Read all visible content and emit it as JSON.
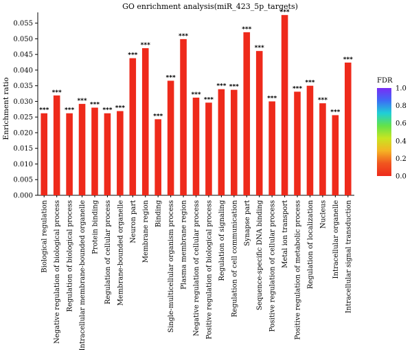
{
  "chart_data": {
    "type": "bar",
    "title": "GO enrichment analysis(miR_423_5p_targets)",
    "xlabel": "",
    "ylabel": "Enrichment ratio",
    "ylim": [
      0,
      0.058
    ],
    "yticks": [
      "0.000",
      "0.005",
      "0.010",
      "0.015",
      "0.020",
      "0.025",
      "0.030",
      "0.035",
      "0.040",
      "0.045",
      "0.050",
      "0.055"
    ],
    "bar_color": "#ee2a1b",
    "categories": [
      "Biological regulation",
      "Negative regulation of biological process",
      "Regulation of biological process",
      "Intracellular membrane-bounded organelle",
      "Protein binding",
      "Regulation of cellular process",
      "Membrane-bounded organelle",
      "Neuron part",
      "Membrane region",
      "Binding",
      "Single-multicellular organism process",
      "Plasma membrane region",
      "Negative regulation of cellular process",
      "Positive regulation of biological process",
      "Regulation of signaling",
      "Regulation of cell communication",
      "Synapse part",
      "Sequence-specific DNA binding",
      "Positive regulation of cellular process",
      "Metal ion transport",
      "Positive regulation of metabolic process",
      "Regulation of localization",
      "Nucleus",
      "Intracellular organelle",
      "Intracellular signal transduction"
    ],
    "values": [
      0.0262,
      0.0319,
      0.0262,
      0.0292,
      0.028,
      0.0262,
      0.0269,
      0.0438,
      0.047,
      0.0243,
      0.0366,
      0.0499,
      0.0312,
      0.0296,
      0.0339,
      0.0337,
      0.0521,
      0.0461,
      0.03,
      0.0576,
      0.0331,
      0.035,
      0.0294,
      0.0256,
      0.0424
    ],
    "annotations": [
      "***",
      "***",
      "***",
      "***",
      "***",
      "***",
      "***",
      "***",
      "***",
      "***",
      "***",
      "***",
      "***",
      "***",
      "***",
      "***",
      "***",
      "***",
      "***",
      "***",
      "***",
      "***",
      "***",
      "***",
      "***"
    ],
    "legend": {
      "title": "FDR",
      "ticks": [
        "1.0",
        "0.8",
        "0.6",
        "0.4",
        "0.2",
        "0.0"
      ],
      "position": "right",
      "colors": [
        "#7a2cf5",
        "#3d6cf5",
        "#1fcfd6",
        "#63e24a",
        "#c8e521",
        "#f5b324",
        "#f0551f",
        "#ee2a1b"
      ]
    }
  }
}
